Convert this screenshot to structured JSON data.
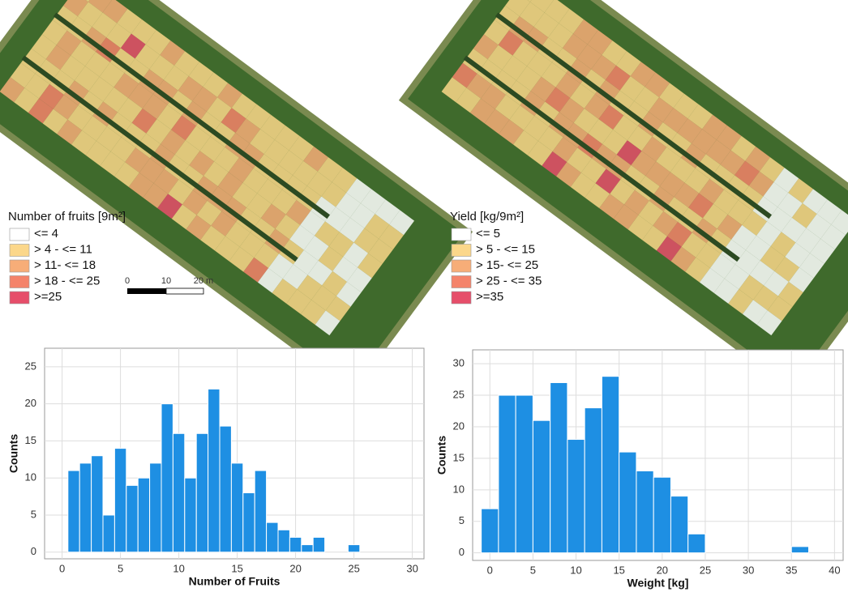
{
  "chart_data": [
    {
      "type": "histogram",
      "x_label": "Number of Fruits",
      "y_label": "Counts",
      "color": "#1e8fe3",
      "bins": [
        0.5,
        1.5,
        2.5,
        3.5,
        4.5,
        5.5,
        6.5,
        7.5,
        8.5,
        9.5,
        10.5,
        11.5,
        12.5,
        13.5,
        14.5,
        15.5,
        16.5,
        17.5,
        18.5,
        19.5,
        20.5,
        21.5,
        22.5,
        23.5,
        24.5,
        25.5
      ],
      "values": [
        11,
        12,
        13,
        5,
        14,
        9,
        10,
        12,
        20,
        16,
        10,
        16,
        22,
        17,
        12,
        8,
        11,
        4,
        3,
        2,
        1,
        2,
        0,
        0,
        1
      ],
      "xlim": [
        -1.5,
        31
      ],
      "xticks": [
        0,
        5,
        10,
        15,
        20,
        25,
        30
      ],
      "ylim": [
        -0.9,
        27.5
      ],
      "yticks": [
        0,
        5,
        10,
        15,
        20,
        25
      ],
      "grid": true
    },
    {
      "type": "histogram",
      "x_label": "Weight [kg]",
      "y_label": "Counts",
      "color": "#1e8fe3",
      "bins": [
        -1,
        1,
        3,
        5,
        7,
        9,
        11,
        13,
        15,
        17,
        19,
        21,
        23,
        25,
        27,
        29,
        31,
        33,
        35,
        37
      ],
      "values": [
        7,
        25,
        25,
        21,
        27,
        18,
        23,
        28,
        16,
        13,
        12,
        9,
        3,
        0,
        0,
        0,
        0,
        0,
        1
      ],
      "xlim": [
        -2,
        41
      ],
      "xticks": [
        0,
        5,
        10,
        15,
        20,
        25,
        30,
        35,
        40
      ],
      "ylim": [
        -1.2,
        32.2
      ],
      "yticks": [
        0,
        5,
        10,
        15,
        20,
        25,
        30
      ],
      "grid": true
    }
  ],
  "maps": [
    {
      "legend_title": "Number of fruits [9m²]",
      "legend": [
        {
          "label": "<= 4",
          "color": "#ffffff"
        },
        {
          "label": "> 4 - <= 11",
          "color": "#fbd78a"
        },
        {
          "label": "> 11- <= 18",
          "color": "#f7ad78"
        },
        {
          "label": "> 18 - <= 25",
          "color": "#f4836a"
        },
        {
          "label": ">=25",
          "color": "#e64e6a"
        }
      ],
      "scale_bar": [
        "0",
        "10",
        "20 m"
      ]
    },
    {
      "legend_title": "Yield [kg/9m²]",
      "legend": [
        {
          "label": "<= 5",
          "color": "#ffffff"
        },
        {
          "label": "> 5 - <= 15",
          "color": "#fbd78a"
        },
        {
          "label": "> 15- <= 25",
          "color": "#f7ad78"
        },
        {
          "label": "> 25 - <= 35",
          "color": "#f4836a"
        },
        {
          "label": ">=35",
          "color": "#e64e6a"
        }
      ]
    }
  ]
}
